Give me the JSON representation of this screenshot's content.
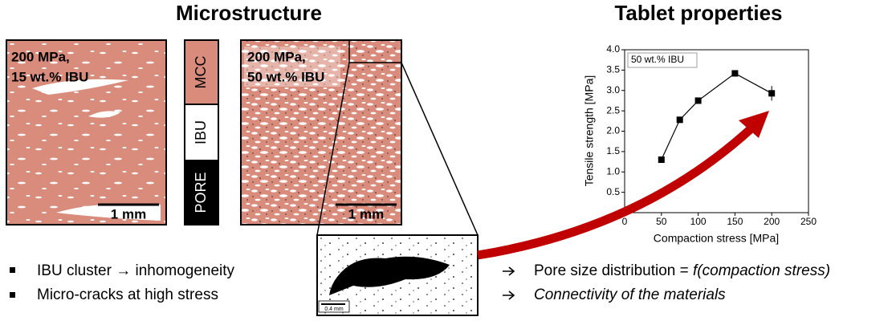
{
  "titles": {
    "left": "Microstructure",
    "right": "Tablet properties"
  },
  "images": [
    {
      "label_lines": [
        "200 MPa,",
        "15 wt.% IBU"
      ],
      "scale": "1 mm"
    },
    {
      "label_lines": [
        "200 MPa,",
        "50 wt.% IBU"
      ],
      "scale": "1 mm"
    }
  ],
  "phase_legend": [
    "MCC",
    "IBU",
    "PORE"
  ],
  "inset_scale": "0.4 mm",
  "bullets_left": [
    "IBU cluster → inhomogeneity",
    "Micro-cracks at high stress"
  ],
  "bullets_right": [
    {
      "text": "Pore size distribution = ",
      "italic": "f(compaction stress)"
    },
    {
      "italic": "Connectivity of the materials"
    }
  ],
  "chart_data": {
    "type": "line",
    "annotation": "50 wt.% IBU",
    "x_label": "Compaction stress [MPa]",
    "y_label": "Tensile strength [MPa]",
    "x": [
      50,
      75,
      100,
      150,
      200
    ],
    "series": [
      {
        "color": "#000000",
        "values": [
          1.3,
          2.28,
          2.75,
          3.42,
          2.93
        ],
        "errors": [
          null,
          null,
          null,
          null,
          0.18
        ]
      }
    ],
    "xlim": [
      0,
      250
    ],
    "xticks": [
      0,
      50,
      100,
      150,
      200,
      250
    ],
    "ylim": [
      0,
      4
    ],
    "yticks": [
      0.5,
      {
        "value": 1,
        "label": "1.0"
      },
      1.5,
      {
        "value": 2,
        "label": "2.0"
      },
      2.5,
      {
        "value": 3,
        "label": "3.0"
      },
      3.5,
      {
        "value": 4,
        "label": "4.0"
      }
    ]
  }
}
